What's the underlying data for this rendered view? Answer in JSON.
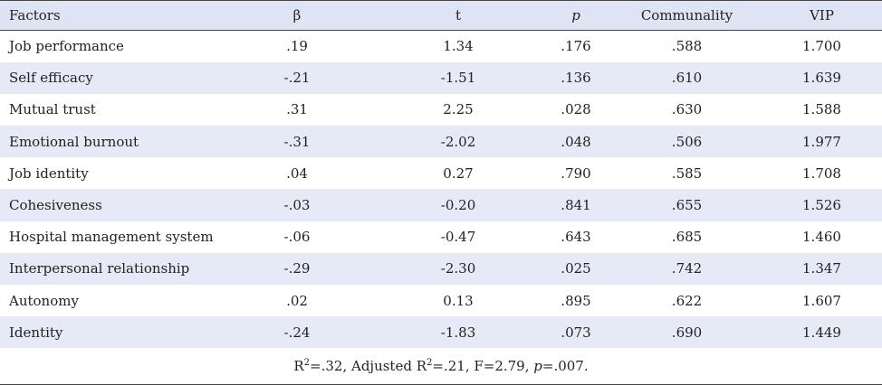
{
  "header": {
    "factors": "Factors",
    "beta": "β",
    "t": "t",
    "p": "p",
    "communality": "Communality",
    "vip": "VIP"
  },
  "rows": [
    {
      "factor": "Job performance",
      "beta": ".19",
      "t": "1.34",
      "p": ".176",
      "communality": ".588",
      "vip": "1.700"
    },
    {
      "factor": "Self efficacy",
      "beta": "-.21",
      "t": "-1.51",
      "p": ".136",
      "communality": ".610",
      "vip": "1.639"
    },
    {
      "factor": "Mutual trust",
      "beta": ".31",
      "t": "2.25",
      "p": ".028",
      "communality": ".630",
      "vip": "1.588"
    },
    {
      "factor": "Emotional burnout",
      "beta": "-.31",
      "t": "-2.02",
      "p": ".048",
      "communality": ".506",
      "vip": "1.977"
    },
    {
      "factor": "Job identity",
      "beta": ".04",
      "t": "0.27",
      "p": ".790",
      "communality": ".585",
      "vip": "1.708"
    },
    {
      "factor": "Cohesiveness",
      "beta": "-.03",
      "t": "-0.20",
      "p": ".841",
      "communality": ".655",
      "vip": "1.526"
    },
    {
      "factor": "Hospital management system",
      "beta": "-.06",
      "t": "-0.47",
      "p": ".643",
      "communality": ".685",
      "vip": "1.460"
    },
    {
      "factor": "Interpersonal relationship",
      "beta": "-.29",
      "t": "-2.30",
      "p": ".025",
      "communality": ".742",
      "vip": "1.347"
    },
    {
      "factor": "Autonomy",
      "beta": ".02",
      "t": "0.13",
      "p": ".895",
      "communality": ".622",
      "vip": "1.607"
    },
    {
      "factor": "Identity",
      "beta": "-.24",
      "t": "-1.83",
      "p": ".073",
      "communality": ".690",
      "vip": "1.449"
    }
  ],
  "footer": {
    "r2_label": "R",
    "r2_sup": "2",
    "r2_value": "=.32, Adjusted R",
    "adj_sup": "2",
    "adj_value": "=.21, F=2.79, ",
    "p_label": "p",
    "p_value": "=.007."
  }
}
